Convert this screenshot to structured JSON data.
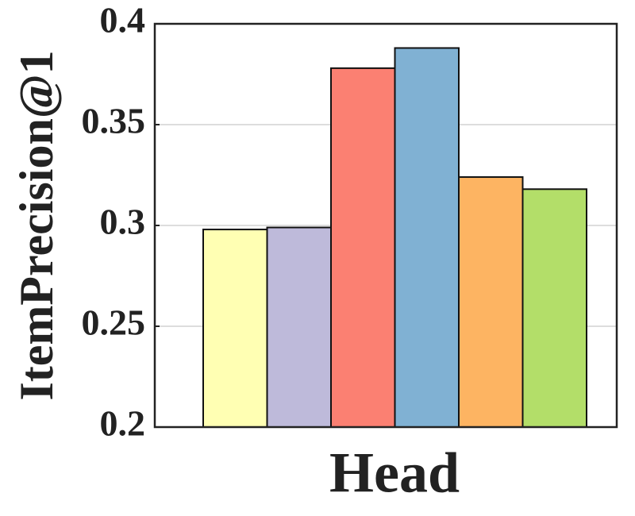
{
  "chart_data": {
    "type": "bar",
    "xlabel": "Head",
    "ylabel": "ItemPrecision@1",
    "values": [
      0.298,
      0.299,
      0.378,
      0.388,
      0.324,
      0.318
    ],
    "colors": [
      "#ffffb3",
      "#bebada",
      "#fb8072",
      "#80b1d3",
      "#fdb462",
      "#b3de69"
    ],
    "ylim": [
      0.2,
      0.4
    ],
    "yticks": [
      0.2,
      0.25,
      0.3,
      0.35,
      0.4
    ],
    "grid": true
  }
}
